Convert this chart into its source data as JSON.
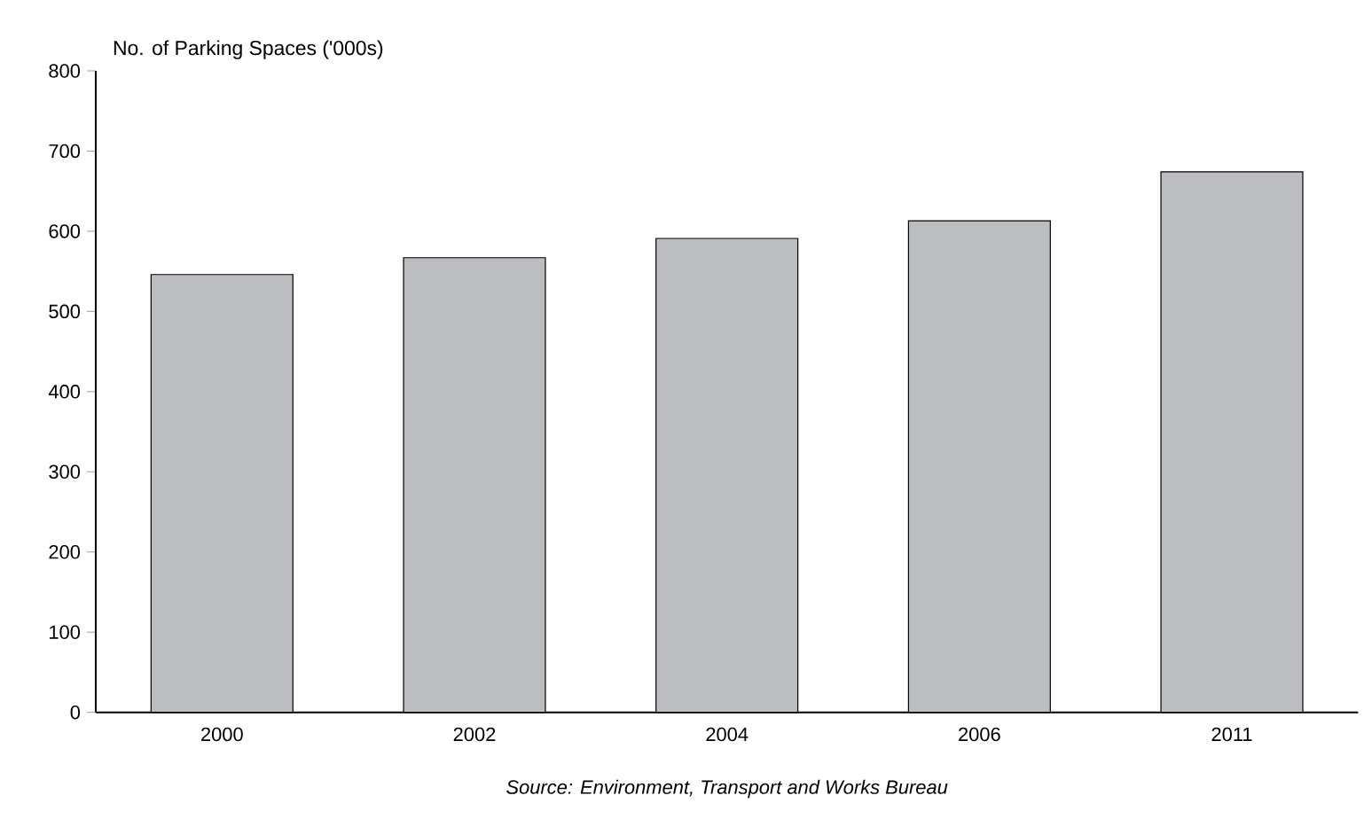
{
  "chart_data": {
    "type": "bar",
    "ylabel": "No. of Parking Spaces ('000s)",
    "categories": [
      "2000",
      "2002",
      "2004",
      "2006",
      "2011"
    ],
    "values": [
      546,
      567,
      591,
      613,
      674
    ],
    "color": "#bcbdc0",
    "ylim": [
      0,
      800
    ],
    "yticks": [
      0,
      100,
      200,
      300,
      400,
      500,
      600,
      700,
      800
    ],
    "annotations": [
      "Source: Environment, Transport and Works Bureau"
    ]
  }
}
